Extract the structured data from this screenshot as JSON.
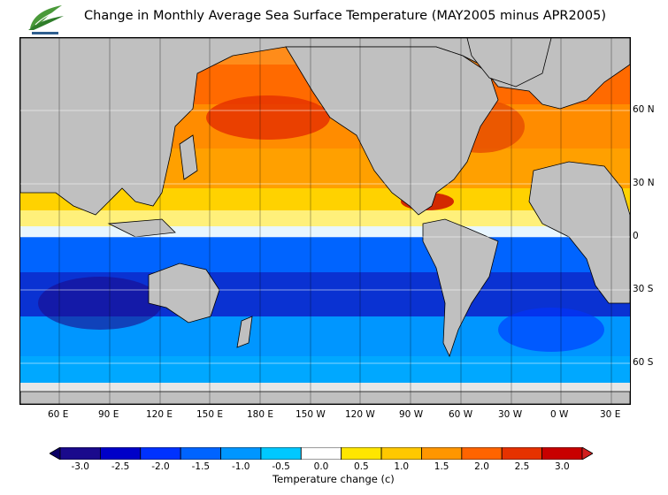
{
  "title": "Change in Monthly Average Sea Surface Temperature (MAY2005 minus APR2005)",
  "latitude_labels": [
    "60 N",
    "30 N",
    "0",
    "30 S",
    "60 S"
  ],
  "longitude_labels": [
    "60 E",
    "90 E",
    "120 E",
    "150 E",
    "180 E",
    "150 W",
    "120 W",
    "90 W",
    "60 W",
    "30 W",
    "0 W",
    "30 E"
  ],
  "colorbar": {
    "title": "Temperature change  (c)",
    "tick_labels": [
      "-3.0",
      "-2.5",
      "-2.0",
      "-1.5",
      "-1.0",
      "-0.5",
      "0.0",
      "0.5",
      "1.0",
      "1.5",
      "2.0",
      "2.5",
      "3.0"
    ],
    "colors": [
      "#1a0a8c",
      "#0000c8",
      "#0032ff",
      "#0064ff",
      "#0096ff",
      "#00c8ff",
      "#ffffff",
      "#ffe600",
      "#ffc800",
      "#ff9600",
      "#ff6400",
      "#e63200",
      "#c80000"
    ],
    "under_color": "#0a0064",
    "over_color": "#d21e1e"
  },
  "colors": {
    "land": "#c0c0c0",
    "ice": "#e6e6e6",
    "coastline": "#000000"
  }
}
